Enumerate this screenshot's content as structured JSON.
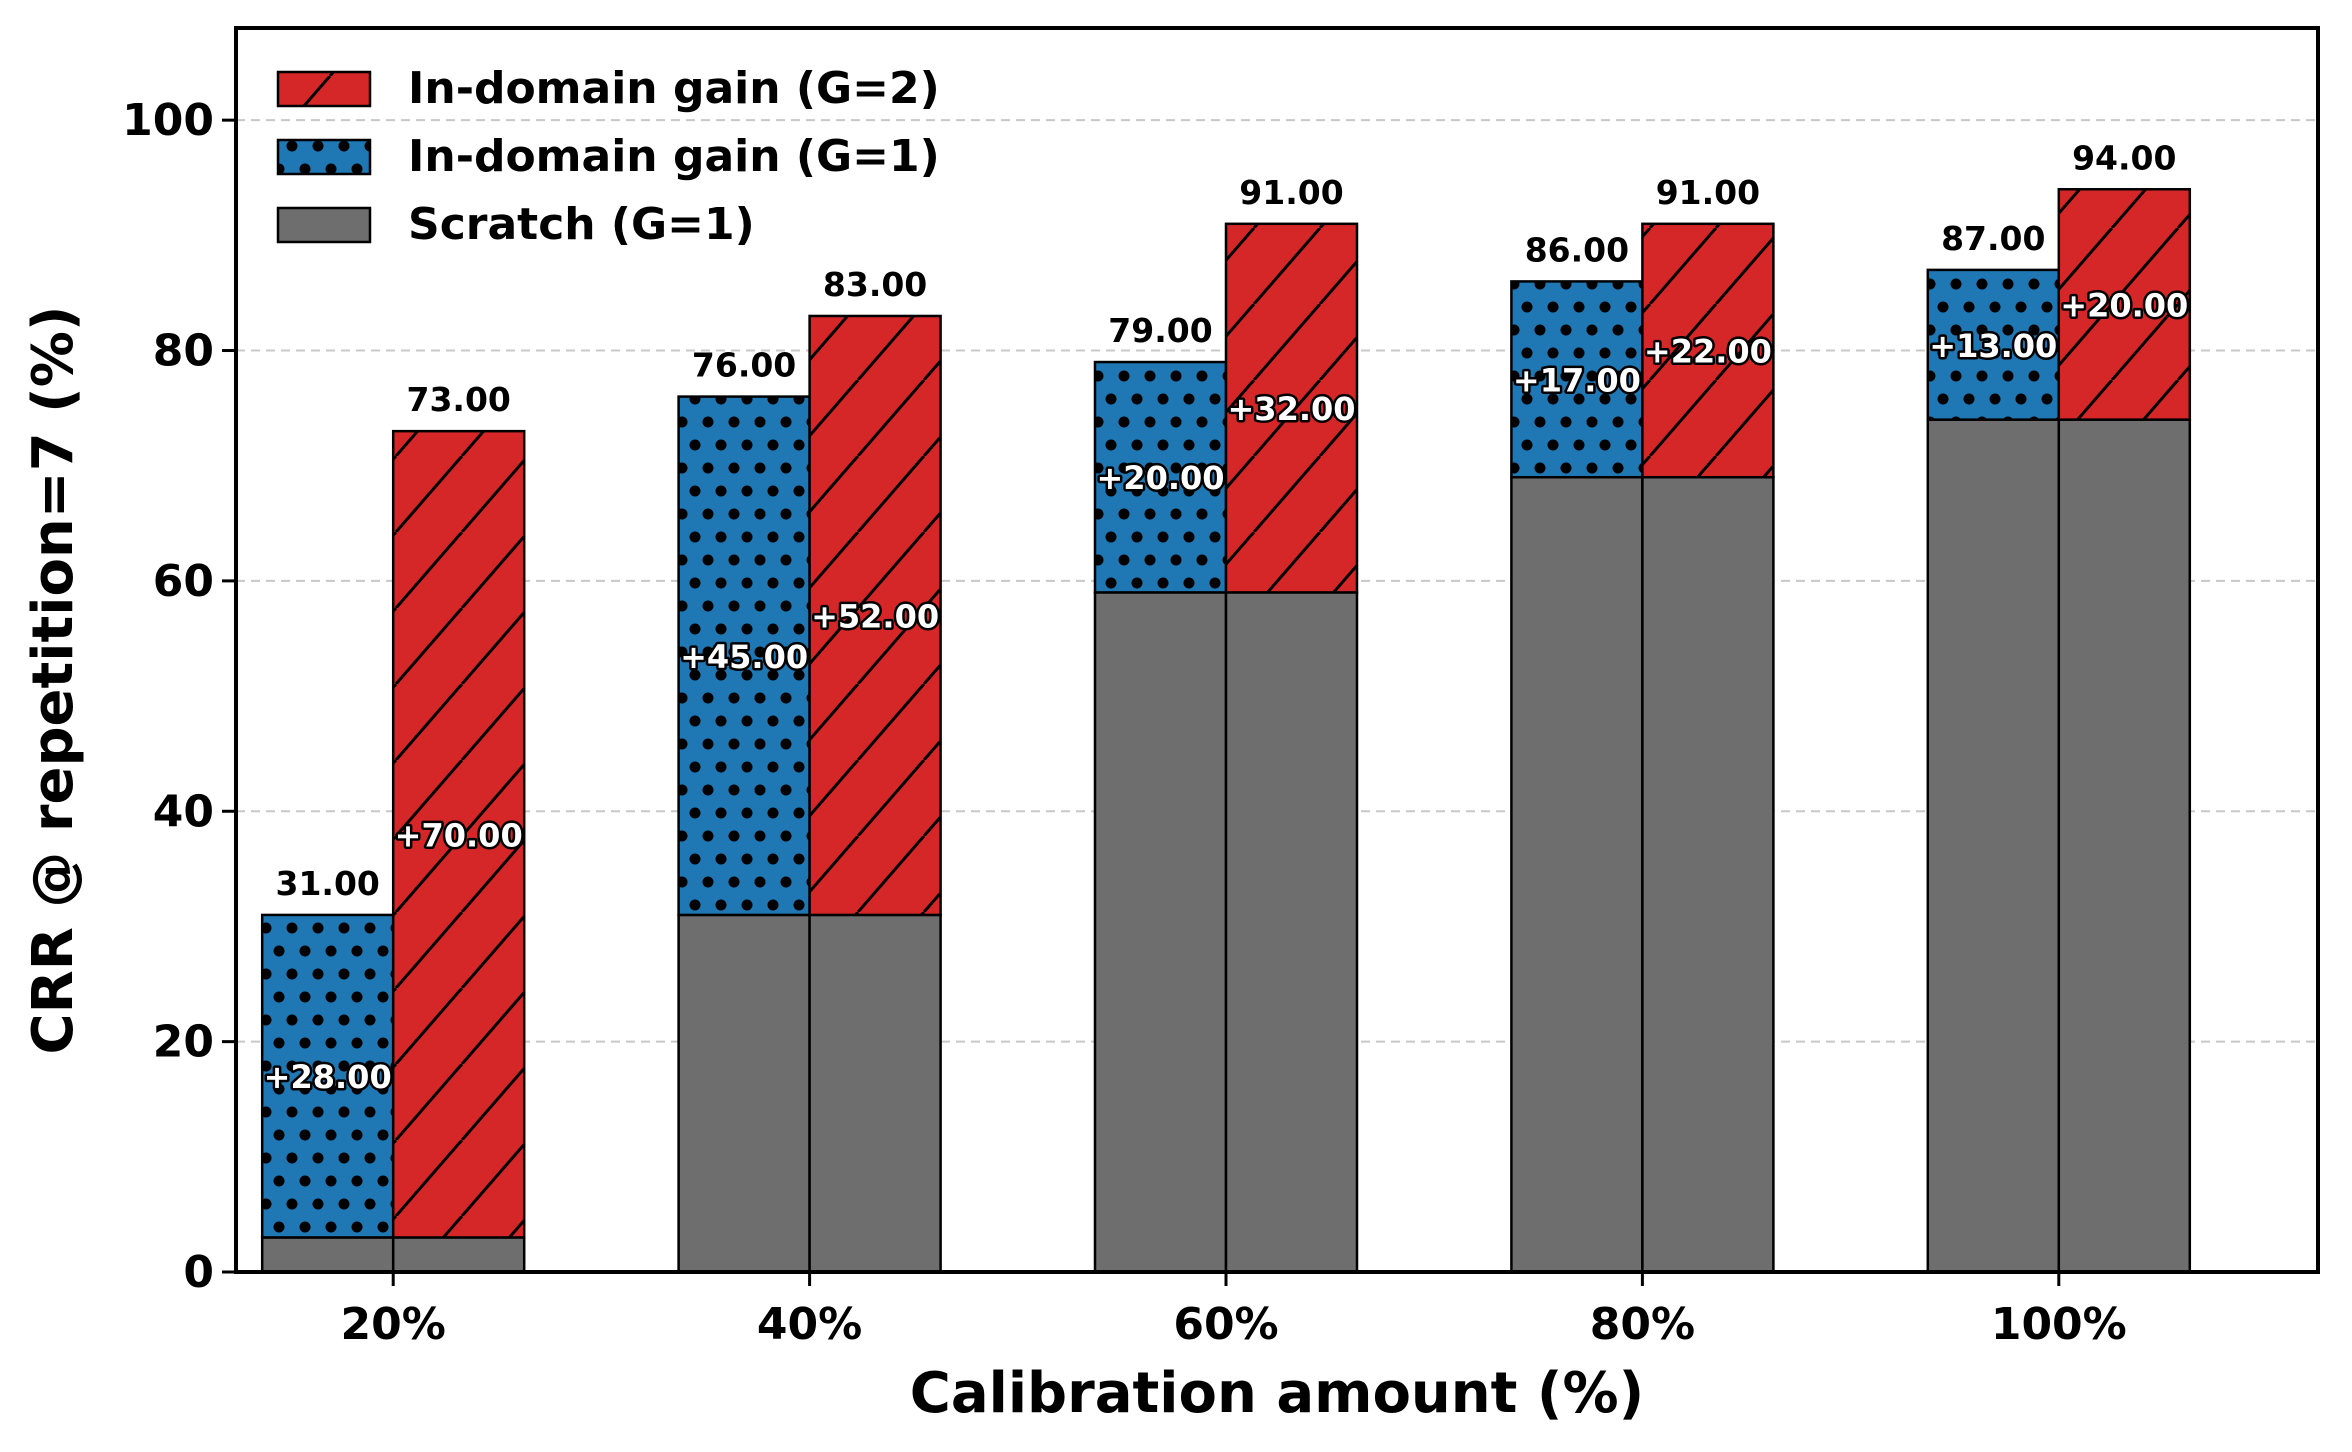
{
  "chart_data": {
    "type": "bar",
    "xlabel": "Calibration amount (%)",
    "ylabel": "CRR @ repetition=7 (%)",
    "categories": [
      "20%",
      "40%",
      "60%",
      "80%",
      "100%"
    ],
    "ylim": [
      0,
      108
    ],
    "yticks": [
      0,
      20,
      40,
      60,
      80,
      100
    ],
    "grid": "horizontal dashed",
    "legend_position": "top-left",
    "scratch": [
      3,
      31,
      59,
      69,
      74
    ],
    "series": [
      {
        "name": "In-domain gain (G=1)",
        "color": "#1f77b4",
        "hatch": "dots",
        "totals": [
          31,
          76,
          79,
          86,
          87
        ],
        "gains": [
          28,
          45,
          20,
          17,
          13
        ],
        "total_labels": [
          "31.00",
          "76.00",
          "79.00",
          "86.00",
          "87.00"
        ],
        "gain_labels": [
          "+28.00",
          "+45.00",
          "+20.00",
          "+17.00",
          "+13.00"
        ]
      },
      {
        "name": "In-domain gain (G=2)",
        "color": "#d62728",
        "hatch": "diagonal",
        "totals": [
          73,
          83,
          91,
          91,
          94
        ],
        "gains": [
          70,
          52,
          32,
          22,
          20
        ],
        "total_labels": [
          "73.00",
          "83.00",
          "91.00",
          "91.00",
          "94.00"
        ],
        "gain_labels": [
          "+70.00",
          "+52.00",
          "+32.00",
          "+22.00",
          "+20.00"
        ]
      }
    ],
    "scratch_series": {
      "name": "Scratch (G=1)",
      "color": "#6e6e6e"
    },
    "legend_order": [
      "In-domain gain (G=2)",
      "In-domain gain (G=1)",
      "Scratch (G=1)"
    ]
  }
}
